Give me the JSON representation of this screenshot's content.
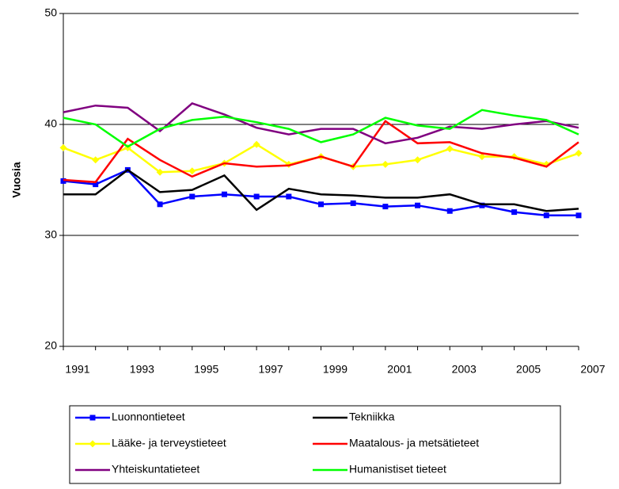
{
  "chart_data": {
    "type": "line",
    "y_label": "Vuosia",
    "categories": [
      "1991",
      null,
      "1993",
      null,
      "1995",
      null,
      "1997",
      null,
      "1999",
      null,
      "2001",
      null,
      "2003",
      null,
      "2005",
      null,
      "2007"
    ],
    "ylim": [
      20,
      50
    ],
    "yticks": [
      20,
      30,
      40,
      50
    ],
    "grid": true,
    "legend": "bottom",
    "series": [
      {
        "name": "Luonnontieteet",
        "color": "#0000ff",
        "marker": "square",
        "values": [
          34.9,
          34.6,
          35.9,
          32.8,
          33.5,
          33.7,
          33.5,
          33.5,
          32.8,
          32.9,
          32.6,
          32.7,
          32.2,
          32.7,
          32.1,
          31.8,
          31.8
        ]
      },
      {
        "name": "Tekniikka",
        "color": "#000000",
        "marker": "none",
        "values": [
          33.7,
          33.7,
          35.9,
          33.9,
          34.1,
          35.4,
          32.3,
          34.2,
          33.7,
          33.6,
          33.4,
          33.4,
          33.7,
          32.8,
          32.8,
          32.2,
          32.4
        ]
      },
      {
        "name": "Lääke- ja terveystieteet",
        "color": "#ffff00",
        "marker": "diamond",
        "values": [
          37.9,
          36.8,
          37.9,
          35.7,
          35.8,
          36.5,
          38.2,
          36.4,
          37.1,
          36.2,
          36.4,
          36.8,
          37.8,
          37.1,
          37.1,
          36.4,
          37.4
        ]
      },
      {
        "name": "Maatalous- ja metsätieteet",
        "color": "#ff0000",
        "marker": "none",
        "values": [
          35.0,
          34.8,
          38.7,
          36.8,
          35.3,
          36.5,
          36.2,
          36.3,
          37.1,
          36.2,
          40.3,
          38.3,
          38.4,
          37.4,
          37.0,
          36.2,
          38.4
        ]
      },
      {
        "name": "Yhteiskuntatieteet",
        "color": "#800080",
        "marker": "none",
        "values": [
          41.1,
          41.7,
          41.5,
          39.4,
          41.9,
          40.9,
          39.7,
          39.1,
          39.6,
          39.6,
          38.3,
          38.8,
          39.8,
          39.6,
          40.0,
          40.3,
          39.7
        ]
      },
      {
        "name": "Humanistiset tieteet",
        "color": "#00ff00",
        "marker": "none",
        "values": [
          40.6,
          40.0,
          38.0,
          39.6,
          40.4,
          40.7,
          40.2,
          39.6,
          38.4,
          39.1,
          40.6,
          39.9,
          39.6,
          41.3,
          40.8,
          40.4,
          39.1
        ]
      }
    ]
  }
}
